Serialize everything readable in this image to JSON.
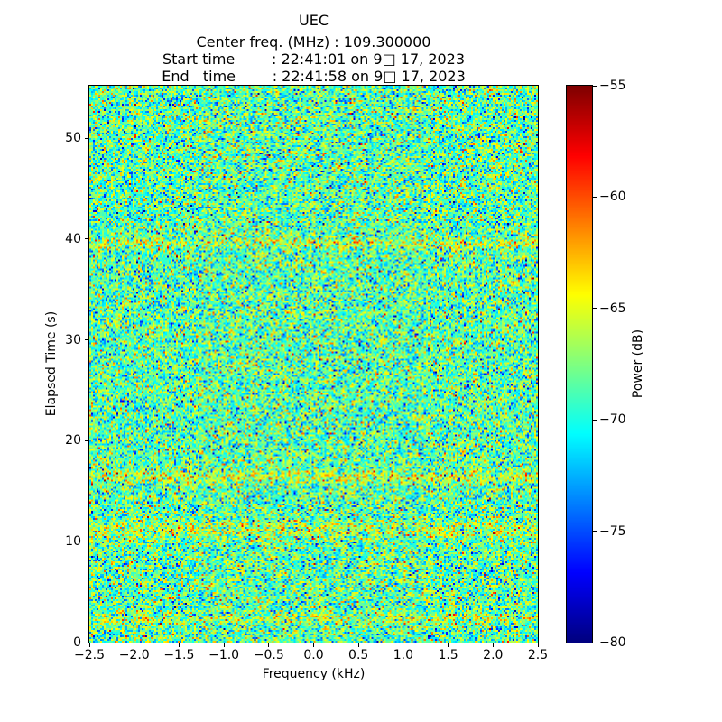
{
  "chart_data": {
    "type": "heatmap",
    "title": "UEC",
    "annotations": [
      "Center freq. (MHz) : 109.300000",
      "Start time        : 22:41:01 on 9□ 17, 2023",
      "End   time        : 22:41:58 on 9□ 17, 2023"
    ],
    "xlabel": "Frequency (kHz)",
    "ylabel": "Elapsed Time (s)",
    "colorbar_label": "Power (dB)",
    "xlim": [
      -2.5,
      2.5
    ],
    "ylim": [
      0,
      55.2
    ],
    "color_range_db": [
      -80,
      -55
    ],
    "colormap": "jet",
    "grid": false,
    "legend": "none",
    "x_tick_values": [
      -2.5,
      -2.0,
      -1.5,
      -1.0,
      -0.5,
      0.0,
      0.5,
      1.0,
      1.5,
      2.0,
      2.5
    ],
    "x_tick_labels": [
      "−2.5",
      "−2.0",
      "−1.5",
      "−1.0",
      "−0.5",
      "0.0",
      "0.5",
      "1.0",
      "1.5",
      "2.0",
      "2.5"
    ],
    "y_tick_values": [
      0,
      10,
      20,
      30,
      40,
      50
    ],
    "y_tick_labels": [
      "0",
      "10",
      "20",
      "30",
      "40",
      "50"
    ],
    "colorbar_tick_values": [
      -55,
      -60,
      -65,
      -70,
      -75,
      -80
    ],
    "colorbar_tick_labels": [
      "−55",
      "−60",
      "−65",
      "−70",
      "−75",
      "−80"
    ],
    "noise_model": {
      "description": "broadband noise floor, mostly cyan-green speckle with sparse dark-blue lows and yellow-orange highs; faint brighter horizontal streaks at certain elapsed times",
      "mean_db": -68.5,
      "std_db": 3.1,
      "seed": 20230917,
      "cols": 248,
      "rows": 308,
      "outlier_low_prob": 0.02,
      "outlier_low_shift_db": -6,
      "outlier_high_prob": 0.02,
      "outlier_high_shift_db": 5,
      "bands": [
        {
          "time_s": 39.6,
          "half_width_s": 0.5,
          "boost_db": 2.2
        },
        {
          "time_s": 16.4,
          "half_width_s": 0.6,
          "boost_db": 2.6
        },
        {
          "time_s": 11.2,
          "half_width_s": 0.9,
          "boost_db": 2.2
        },
        {
          "time_s": 2.4,
          "half_width_s": 0.6,
          "boost_db": 1.8
        }
      ]
    }
  }
}
